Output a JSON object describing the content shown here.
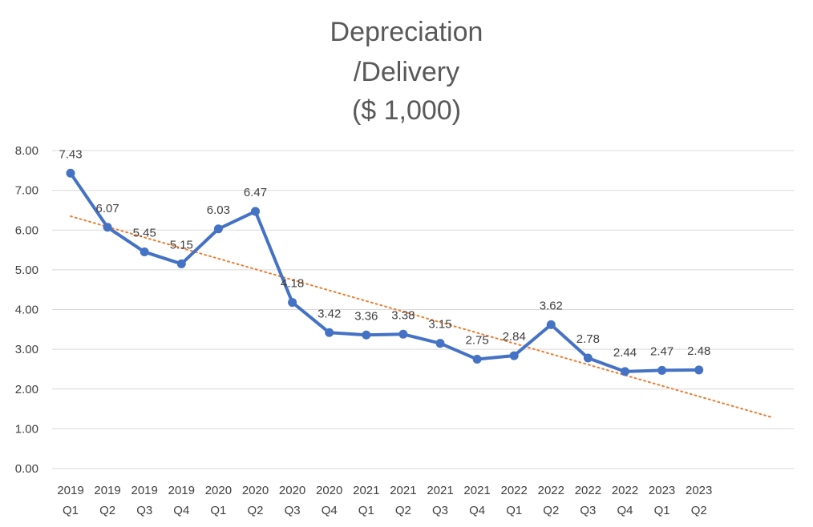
{
  "chart_data": {
    "type": "line",
    "title_lines": [
      "Depreciation",
      "/Delivery",
      "($ 1,000)"
    ],
    "categories": [
      [
        "2019",
        "Q1"
      ],
      [
        "2019",
        "Q2"
      ],
      [
        "2019",
        "Q3"
      ],
      [
        "2019",
        "Q4"
      ],
      [
        "2020",
        "Q1"
      ],
      [
        "2020",
        "Q2"
      ],
      [
        "2020",
        "Q3"
      ],
      [
        "2020",
        "Q4"
      ],
      [
        "2021",
        "Q1"
      ],
      [
        "2021",
        "Q2"
      ],
      [
        "2021",
        "Q3"
      ],
      [
        "2021",
        "Q4"
      ],
      [
        "2022",
        "Q1"
      ],
      [
        "2022",
        "Q2"
      ],
      [
        "2022",
        "Q3"
      ],
      [
        "2022",
        "Q4"
      ],
      [
        "2023",
        "Q1"
      ],
      [
        "2023",
        "Q2"
      ]
    ],
    "series": [
      {
        "values": [
          7.43,
          6.07,
          5.45,
          5.15,
          6.03,
          6.47,
          4.18,
          3.42,
          3.36,
          3.38,
          3.15,
          2.75,
          2.84,
          3.62,
          2.78,
          2.44,
          2.47,
          2.48
        ],
        "data_labels": [
          "7.43",
          "6.07",
          "5.45",
          "5.15",
          "6.03",
          "6.47",
          "4.18",
          "3.42",
          "3.36",
          "3.38",
          "3.15",
          "2.75",
          "2.84",
          "3.62",
          "2.78",
          "2.44",
          "2.47",
          "2.48"
        ],
        "color": "#4472c4"
      }
    ],
    "trendline": {
      "type": "linear",
      "style": "dotted",
      "color": "#ed7d31",
      "extends_categories": 2
    },
    "y_ticks": [
      "0.00",
      "1.00",
      "2.00",
      "3.00",
      "4.00",
      "5.00",
      "6.00",
      "7.00",
      "8.00"
    ],
    "ylim": [
      0,
      8
    ],
    "grid": true,
    "legend": "none",
    "colors": {
      "line": "#4472c4",
      "trend": "#ed7d31",
      "grid": "#d9d9d9",
      "text": "#404040",
      "title": "#595959"
    }
  }
}
